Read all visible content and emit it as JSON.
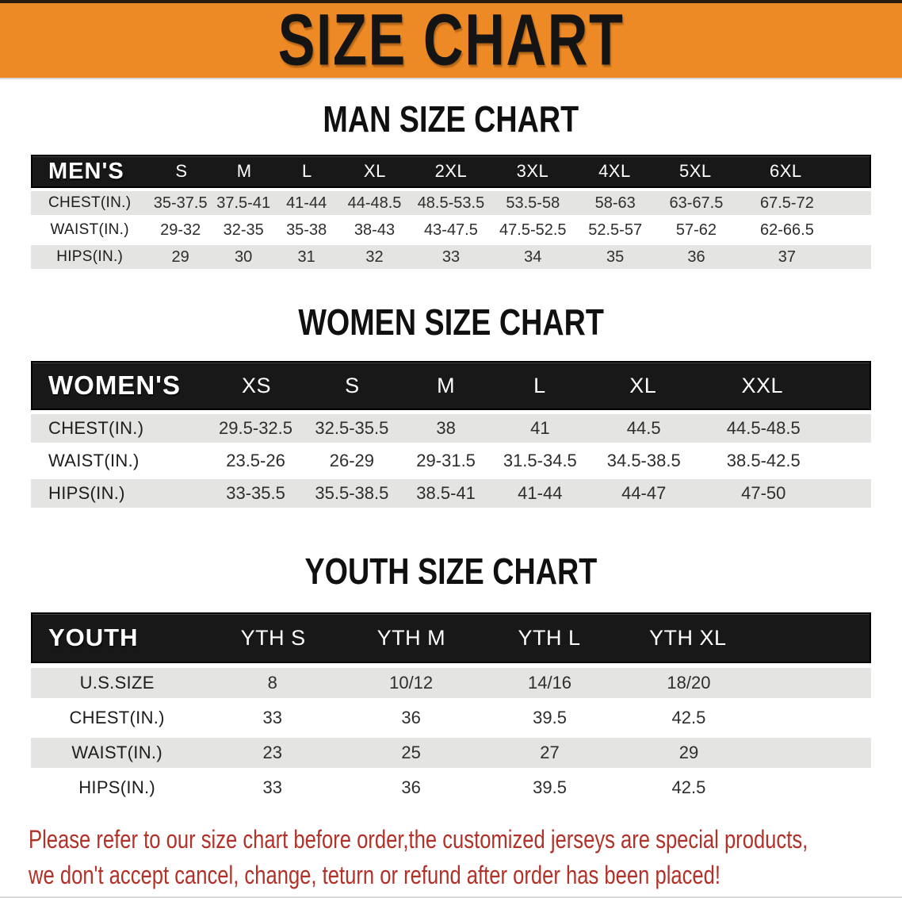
{
  "banner": {
    "title": "SIZE CHART"
  },
  "men": {
    "heading": "MAN SIZE CHART",
    "label": "MEN'S",
    "sizes": [
      "S",
      "M",
      "L",
      "XL",
      "2XL",
      "3XL",
      "4XL",
      "5XL",
      "6XL"
    ],
    "rows": [
      {
        "label": "CHEST(IN.)",
        "values": [
          "35-37.5",
          "37.5-41",
          "41-44",
          "44-48.5",
          "48.5-53.5",
          "53.5-58",
          "58-63",
          "63-67.5",
          "67.5-72"
        ]
      },
      {
        "label": "WAIST(IN.)",
        "values": [
          "29-32",
          "32-35",
          "35-38",
          "38-43",
          "43-47.5",
          "47.5-52.5",
          "52.5-57",
          "57-62",
          "62-66.5"
        ]
      },
      {
        "label": "HIPS(IN.)",
        "values": [
          "29",
          "30",
          "31",
          "32",
          "33",
          "34",
          "35",
          "36",
          "37"
        ]
      }
    ]
  },
  "women": {
    "heading": "WOMEN SIZE CHART",
    "label": "WOMEN'S",
    "sizes": [
      "XS",
      "S",
      "M",
      "L",
      "XL",
      "XXL"
    ],
    "rows": [
      {
        "label": "CHEST(IN.)",
        "values": [
          "29.5-32.5",
          "32.5-35.5",
          "38",
          "41",
          "44.5",
          "44.5-48.5"
        ]
      },
      {
        "label": "WAIST(IN.)",
        "values": [
          "23.5-26",
          "26-29",
          "29-31.5",
          "31.5-34.5",
          "34.5-38.5",
          "38.5-42.5"
        ]
      },
      {
        "label": "HIPS(IN.)",
        "values": [
          "33-35.5",
          "35.5-38.5",
          "38.5-41",
          "41-44",
          "44-47",
          "47-50"
        ]
      }
    ]
  },
  "youth": {
    "heading": "YOUTH SIZE CHART",
    "label": "YOUTH",
    "sizes": [
      "YTH S",
      "YTH M",
      "YTH L",
      "YTH XL"
    ],
    "rows": [
      {
        "label": "U.S.SIZE",
        "values": [
          "8",
          "10/12",
          "14/16",
          "18/20"
        ]
      },
      {
        "label": "CHEST(IN.)",
        "values": [
          "33",
          "36",
          "39.5",
          "42.5"
        ]
      },
      {
        "label": "WAIST(IN.)",
        "values": [
          "23",
          "25",
          "27",
          "29"
        ]
      },
      {
        "label": "HIPS(IN.)",
        "values": [
          "33",
          "36",
          "39.5",
          "42.5"
        ]
      }
    ]
  },
  "disclaimer": {
    "line1": "Please refer to our size chart before order,the customized jerseys are special products,",
    "line2": "we don't accept cancel, change, teturn or refund after order has been placed!"
  },
  "colors": {
    "banner_orange": "#ee8a25",
    "bar_black": "#181818",
    "row_gray": "#e4e4e2",
    "disclaimer_red": "#b23128"
  }
}
